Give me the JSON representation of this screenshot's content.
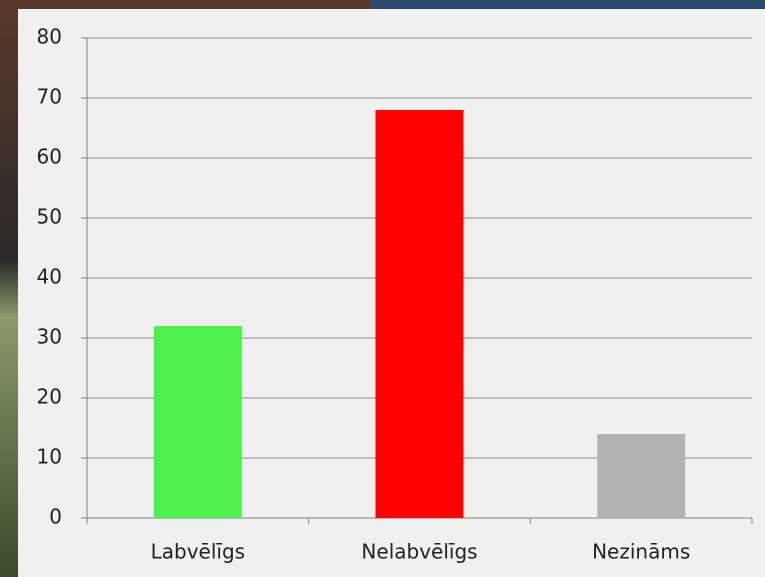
{
  "chart_data": {
    "type": "bar",
    "categories": [
      "Labvēlīgs",
      "Nelabvēlīgs",
      "Nezināms"
    ],
    "values": [
      32,
      68,
      14
    ],
    "colors": [
      "#4ef04e",
      "#ff0000",
      "#b3b3b3"
    ],
    "ylim": [
      0,
      80
    ],
    "yticks": [
      0,
      10,
      20,
      30,
      40,
      50,
      60,
      70,
      80
    ],
    "grid": true
  }
}
